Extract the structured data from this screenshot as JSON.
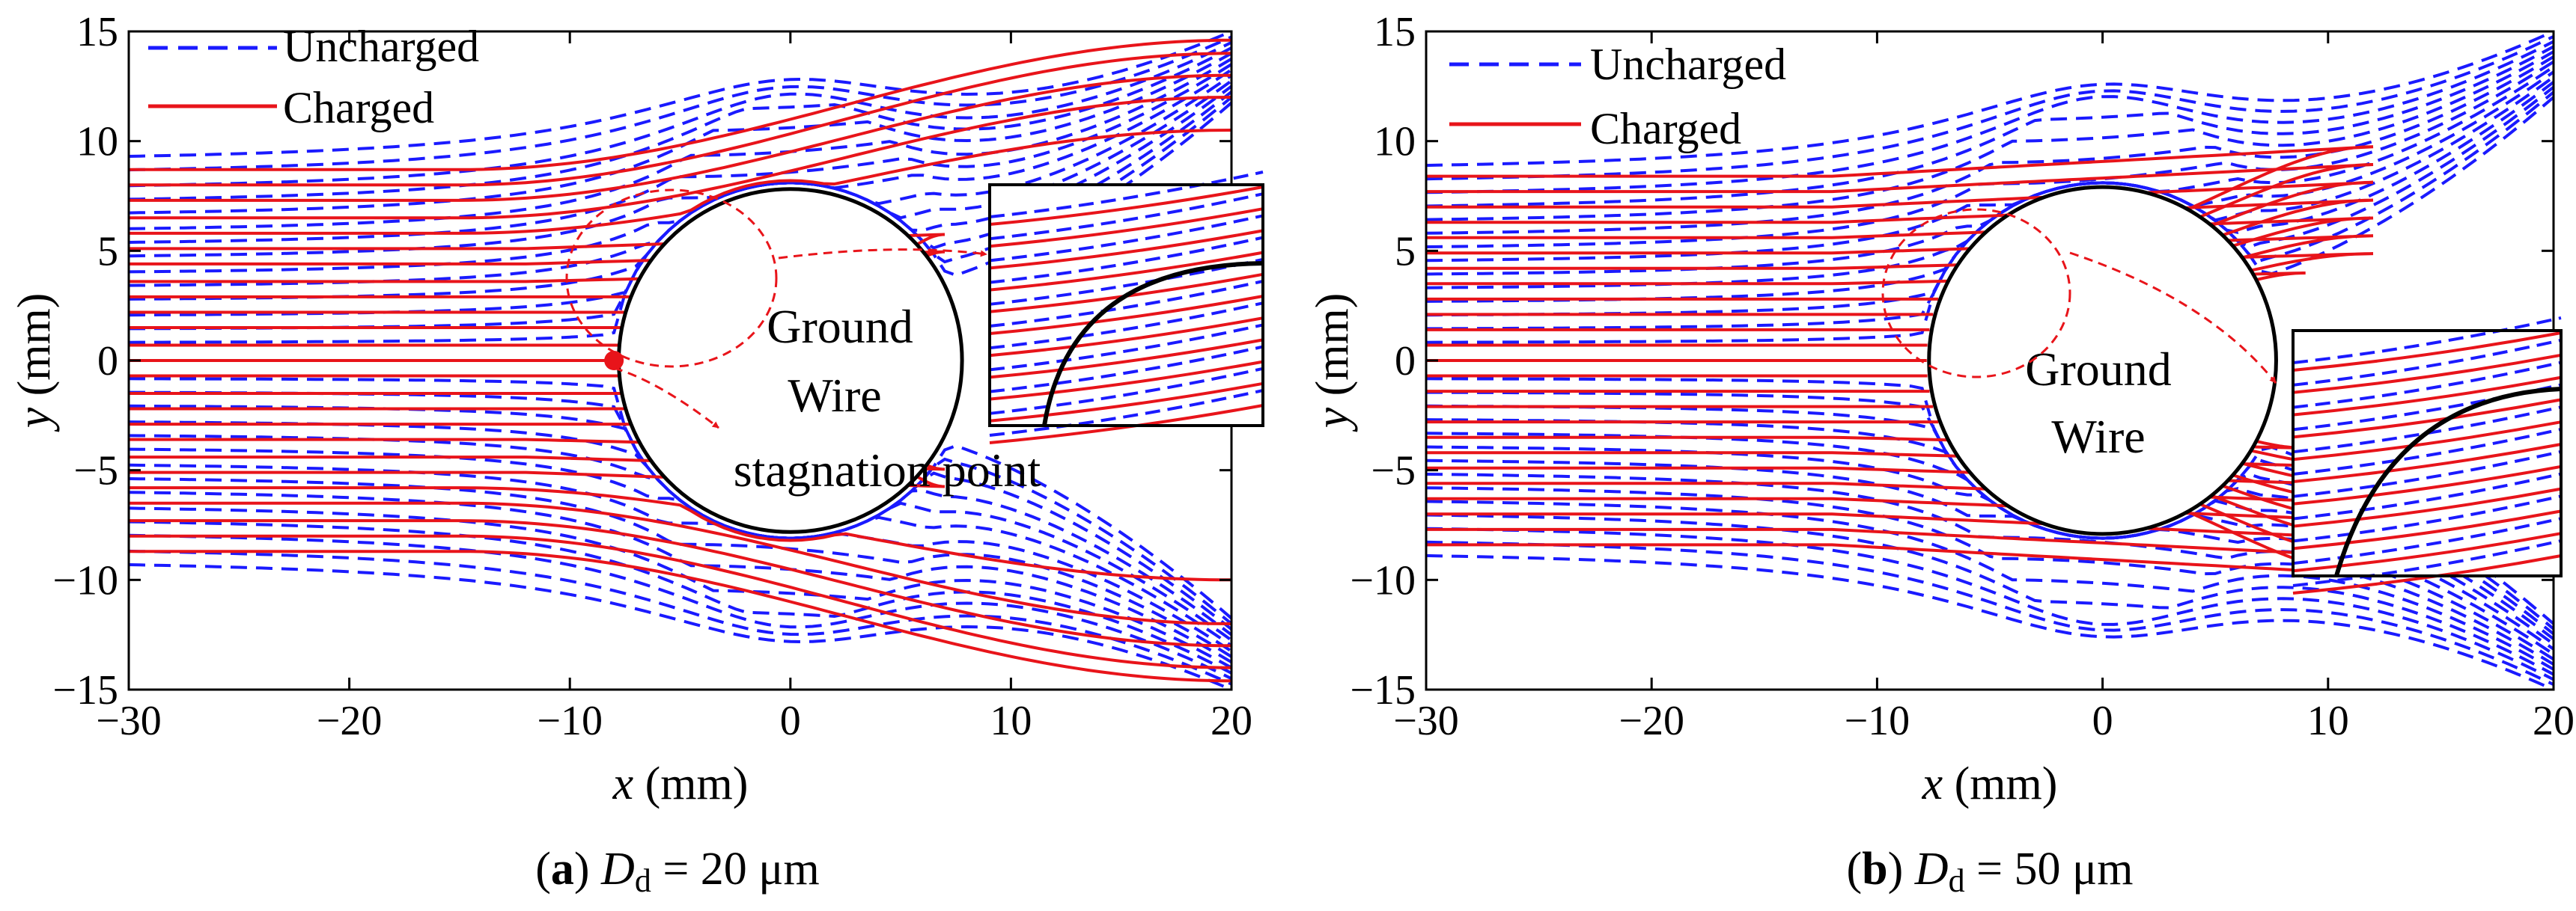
{
  "chart_data": [
    {
      "panel": "a",
      "type": "line",
      "caption": {
        "letter": "a",
        "symbol": "D",
        "subscript": "d",
        "value": " = 20 μm"
      },
      "xlabel": {
        "var": "x",
        "unit": " (mm)"
      },
      "ylabel": {
        "var": "y",
        "unit": " (mm)"
      },
      "xlim": [
        -30,
        20
      ],
      "ylim": [
        -15,
        15
      ],
      "xticks": [
        -30,
        -20,
        -10,
        0,
        10,
        20
      ],
      "yticks": [
        15,
        10,
        5,
        0,
        -5,
        -10,
        -15
      ],
      "tick_labels_x": [
        "−30",
        "−20",
        "−10",
        "0",
        "10",
        "20"
      ],
      "tick_labels_y": [
        "15",
        "10",
        "5",
        "0",
        "−5",
        "−10",
        "−15"
      ],
      "legend": {
        "position": "top-left",
        "entries": [
          {
            "label": "Uncharged",
            "color": "#1a1aff",
            "style": "dashed"
          },
          {
            "label": "Charged",
            "color": "#e8141a",
            "style": "solid"
          }
        ]
      },
      "wire": {
        "center": [
          0,
          0
        ],
        "radius": 7.8
      },
      "annotations": [
        "Ground",
        "Wire",
        "stagnation point"
      ],
      "stagnation_point": [
        -8,
        0
      ],
      "uncharged": {
        "start_y": [
          -9,
          -8.4,
          -7.7,
          -7.1,
          -6.5,
          -5.8,
          -5.2,
          -4.6,
          -3.9,
          -3.3,
          -2.7,
          -2.0,
          -1.4,
          -0.8,
          0.8,
          1.4,
          2.0,
          2.7,
          3.3,
          3.9,
          4.6,
          5.2,
          5.8,
          6.5,
          7.1,
          7.7,
          8.4,
          9.0
        ],
        "end_y_top": [
          8.5,
          15
        ],
        "end_y_bottom": [
          -8.5,
          -15
        ]
      },
      "charged": {
        "start_y": [
          -8.7,
          -8.0,
          -7.3,
          -6.5,
          -5.8,
          -5.1,
          -4.4,
          -3.6,
          -2.9,
          -2.2,
          -1.5,
          -0.7,
          0.0,
          0.7,
          1.5,
          2.2,
          2.9,
          3.6,
          4.4,
          5.1,
          5.8,
          6.5,
          7.3,
          8.0,
          8.7
        ],
        "escaping_top_end_y": [
          10.5,
          12.0,
          13.0,
          14.0,
          14.6
        ],
        "escaping_bottom_end_y": [
          -10.0,
          -12.0,
          -13.0,
          -14.0,
          -14.6
        ],
        "turnaround_x_top": [
          1,
          3,
          7
        ],
        "turnaround_x_bottom": [
          1,
          3,
          7
        ]
      },
      "inset": true
    },
    {
      "panel": "b",
      "type": "line",
      "caption": {
        "letter": "b",
        "symbol": "D",
        "subscript": "d",
        "value": " = 50 μm"
      },
      "xlabel": {
        "var": "x",
        "unit": " (mm)"
      },
      "ylabel": {
        "var": "y",
        "unit": " (mm)"
      },
      "xlim": [
        -30,
        20
      ],
      "ylim": [
        -15,
        15
      ],
      "xticks": [
        -30,
        -20,
        -10,
        0,
        10,
        20
      ],
      "yticks": [
        15,
        10,
        5,
        0,
        -5,
        -10,
        -15
      ],
      "tick_labels_x": [
        "−30",
        "−20",
        "−10",
        "0",
        "10",
        "20"
      ],
      "tick_labels_y": [
        "15",
        "10",
        "5",
        "0",
        "−5",
        "−10",
        "−15"
      ],
      "legend": {
        "position": "top-left",
        "entries": [
          {
            "label": "Uncharged",
            "color": "#1a1aff",
            "style": "dashed"
          },
          {
            "label": "Charged",
            "color": "#e8141a",
            "style": "solid"
          }
        ]
      },
      "wire": {
        "center": [
          0,
          0
        ],
        "radius": 7.8
      },
      "annotations": [
        "Ground",
        "Wire"
      ],
      "uncharged": {
        "start_y": [
          -8.6,
          -8.0,
          -7.4,
          -6.8,
          -6.2,
          -5.6,
          -5.0,
          -4.4,
          -3.8,
          -3.2,
          -2.6,
          -2.0,
          -1.4,
          -0.8,
          0.8,
          1.4,
          2.0,
          2.6,
          3.2,
          3.8,
          4.4,
          5.0,
          5.6,
          6.2,
          6.8,
          7.4,
          8.0,
          8.6
        ],
        "end_y_top": [
          9.0,
          15
        ],
        "end_y_bottom": [
          -9.0,
          -15
        ]
      },
      "charged": {
        "start_y": [
          -8.4,
          -7.7,
          -7.0,
          -6.3,
          -5.6,
          -4.9,
          -4.2,
          -3.5,
          -2.8,
          -2.1,
          -1.4,
          -0.7,
          0.0,
          0.7,
          1.4,
          2.1,
          2.8,
          3.5,
          4.2,
          4.9,
          5.6,
          6.3,
          7.0,
          7.7,
          8.4
        ],
        "turnaround_x_top": [
          6,
          9,
          12
        ],
        "turnaround_x_bottom": [
          6,
          9,
          12
        ]
      },
      "inset": true
    }
  ]
}
